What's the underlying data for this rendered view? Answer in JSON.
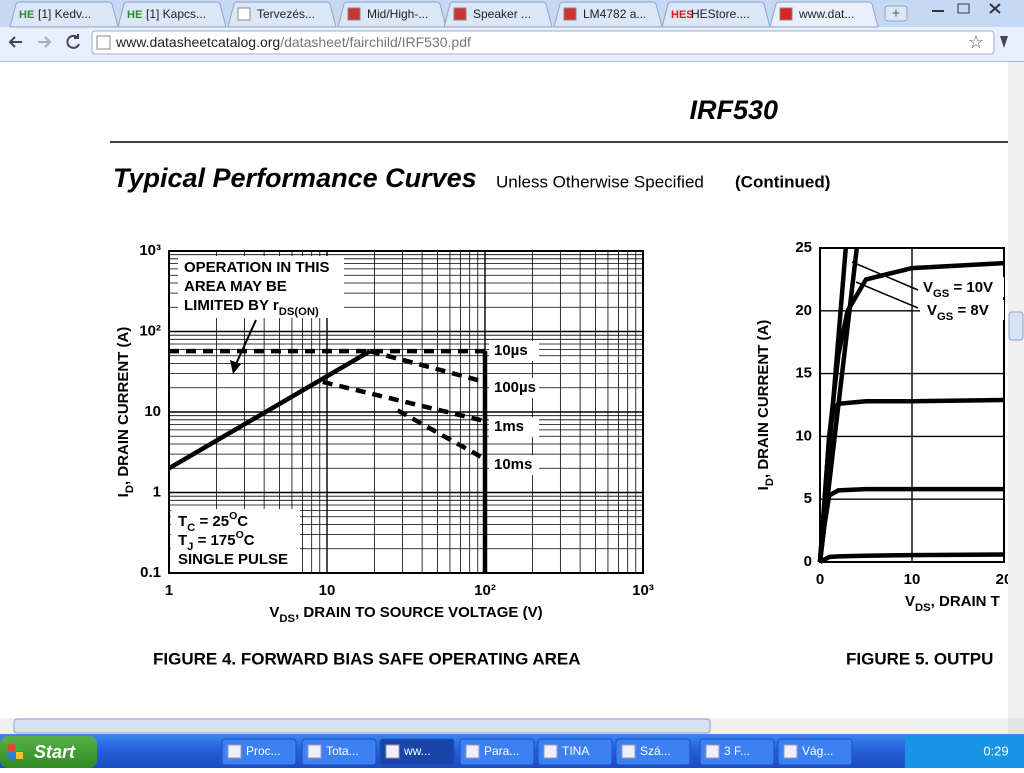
{
  "browser": {
    "tabs": [
      {
        "icon": "HE",
        "title": "[1] Kedv..."
      },
      {
        "icon": "HE",
        "title": "[1] Kapcs..."
      },
      {
        "title": "Tervezés..."
      },
      {
        "title": "Mid/High-..."
      },
      {
        "title": "Speaker ..."
      },
      {
        "title": "LM4782 a..."
      },
      {
        "icon": "HES",
        "title": "HEStore...."
      },
      {
        "title": "www.dat..."
      }
    ],
    "url_host": "www.datasheetcatalog.org",
    "url_path": "/datasheet/fairchild/IRF530.pdf"
  },
  "document": {
    "part_number": "IRF530",
    "heading": "Typical Performance Curves",
    "heading_note": "Unless Otherwise Specified",
    "heading_suffix": "(Continued)",
    "figures": [
      {
        "type": "line",
        "log_x": true,
        "log_y": true,
        "grid": true,
        "caption": "FIGURE 4.  FORWARD BIAS SAFE OPERATING AREA",
        "x_label": [
          {
            "text": "V"
          },
          {
            "sub": "DS"
          },
          {
            "text": ", DRAIN TO SOURCE VOLTAGE (V)"
          }
        ],
        "y_label": [
          {
            "text": "I"
          },
          {
            "sub": "D"
          },
          {
            "text": ", DRAIN CURRENT (A)"
          }
        ],
        "xlim": [
          1,
          1000
        ],
        "ylim": [
          0.1,
          1000
        ],
        "xticks": [
          1,
          10,
          {
            "value": 100,
            "label": "10²"
          },
          {
            "value": 1000,
            "label": "10³"
          }
        ],
        "yticks": [
          0.1,
          1,
          10,
          {
            "value": 100,
            "label": "10²"
          },
          {
            "value": 1000,
            "label": "10³"
          }
        ],
        "annotation": [
          [
            {
              "text": "OPERATION IN THIS"
            }
          ],
          [
            {
              "text": "AREA MAY BE"
            }
          ],
          [
            {
              "text": "LIMITED BY r"
            },
            {
              "sub": "DS(ON)"
            }
          ]
        ],
        "conditions": [
          [
            {
              "text": "T"
            },
            {
              "sub": "C"
            },
            {
              "text": " = 25"
            },
            {
              "sup": "O"
            },
            {
              "text": "C"
            }
          ],
          [
            {
              "text": "T"
            },
            {
              "sub": "J"
            },
            {
              "text": " = 175"
            },
            {
              "sup": "O"
            },
            {
              "text": "C"
            }
          ],
          [
            {
              "text": "SINGLE PULSE"
            }
          ]
        ],
        "series": [
          {
            "name": "10µs",
            "color": "#000000",
            "dashed": true,
            "x": [
              1,
              100
            ],
            "values": [
              57,
              57
            ]
          },
          {
            "name": "100µs",
            "color": "#000000",
            "dashed": true,
            "x": [
              18.7,
              100
            ],
            "values": [
              57,
              23.6
            ]
          },
          {
            "name": "1ms",
            "color": "#000000",
            "dashed": true,
            "x": [
              9.4,
              100
            ],
            "values": [
              23.6,
              7.7
            ]
          },
          {
            "name": "10ms",
            "color": "#000000",
            "dashed": true,
            "x": [
              28,
              100
            ],
            "values": [
              10.5,
              2.6
            ]
          },
          {
            "color": "#000000",
            "dashed": false,
            "x": [
              1,
              18.7
            ],
            "values": [
              2,
              57
            ]
          },
          {
            "color": "#000000",
            "dashed": false,
            "x": [
              100,
              100
            ],
            "values": [
              57,
              0.1
            ]
          }
        ]
      },
      {
        "type": "line",
        "grid": true,
        "caption": "FIGURE 5.  OUTPU",
        "x_label": [
          {
            "text": "V"
          },
          {
            "sub": "DS"
          },
          {
            "text": ", DRAIN T"
          }
        ],
        "y_label": [
          {
            "text": "I"
          },
          {
            "sub": "D"
          },
          {
            "text": ", DRAIN CURRENT (A)"
          }
        ],
        "xlim": [
          0,
          20
        ],
        "ylim": [
          0,
          25
        ],
        "xticks": [
          0,
          10,
          20
        ],
        "yticks": [
          0,
          5,
          10,
          15,
          20,
          25
        ],
        "annotations": [
          [
            {
              "text": "V"
            },
            {
              "sub": "GS"
            },
            {
              "text": " = 10V"
            }
          ],
          [
            {
              "text": "V"
            },
            {
              "sub": "GS"
            },
            {
              "text": " = 8V"
            }
          ]
        ],
        "series": [
          {
            "color": "#000000",
            "x": [
              0,
              1,
              2,
              5,
              10,
              20
            ],
            "values": [
              0,
              0.4,
              0.45,
              0.5,
              0.55,
              0.6
            ]
          },
          {
            "color": "#000000",
            "x": [
              0,
              0.5,
              1,
              2,
              5,
              10,
              20
            ],
            "values": [
              0,
              3,
              5.3,
              5.7,
              5.8,
              5.8,
              5.8
            ]
          },
          {
            "color": "#000000",
            "x": [
              0,
              0.5,
              1,
              1.5,
              2,
              5,
              10,
              20
            ],
            "values": [
              0,
              5,
              10,
              12.2,
              12.6,
              12.8,
              12.8,
              12.9
            ]
          },
          {
            "color": "#000000",
            "x": [
              0,
              0.5,
              1,
              2,
              3,
              5,
              10,
              20
            ],
            "values": [
              0,
              5,
              10,
              16.5,
              20,
              22.5,
              23.4,
              23.8
            ]
          },
          {
            "color": "#000000",
            "x": [
              0,
              2.8
            ],
            "values": [
              0,
              25
            ]
          },
          {
            "color": "#000000",
            "x": [
              0,
              4
            ],
            "values": [
              0,
              25
            ]
          }
        ]
      }
    ]
  },
  "taskbar": {
    "start": "Start",
    "items": [
      "Proc...",
      "Tota...",
      "ww...",
      "Para...",
      "TINA",
      "Szá...",
      "3 F...",
      "Vág..."
    ],
    "clock": "0:29"
  }
}
